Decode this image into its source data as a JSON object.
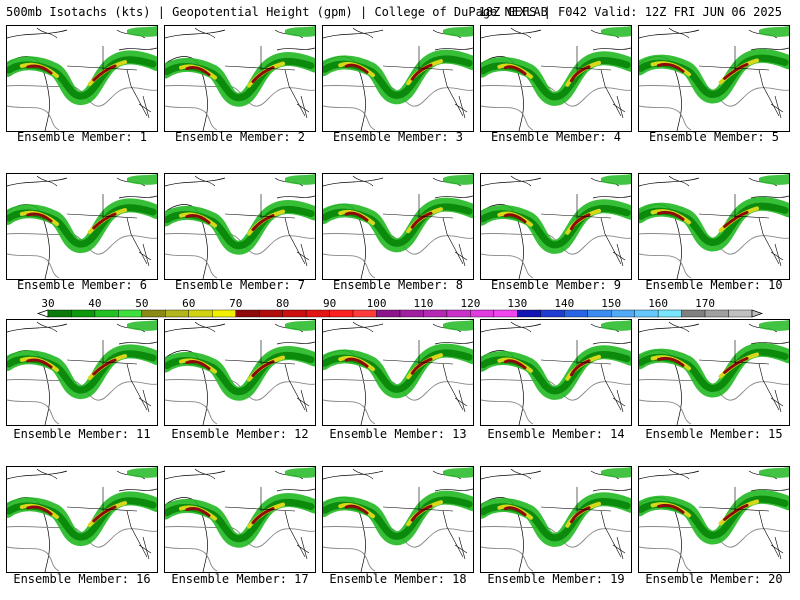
{
  "header": {
    "title_left": "500mb Isotachs (kts) | Geopotential Height (gpm) | College of DuPage NEXLAB",
    "title_right": "18Z GEFS | F042 Valid: 12Z FRI JUN 06 2025"
  },
  "members": [
    {
      "label": "Ensemble Member: 1"
    },
    {
      "label": "Ensemble Member: 2"
    },
    {
      "label": "Ensemble Member: 3"
    },
    {
      "label": "Ensemble Member: 4"
    },
    {
      "label": "Ensemble Member: 5"
    },
    {
      "label": "Ensemble Member: 6"
    },
    {
      "label": "Ensemble Member: 7"
    },
    {
      "label": "Ensemble Member: 8"
    },
    {
      "label": "Ensemble Member: 9"
    },
    {
      "label": "Ensemble Member: 10"
    },
    {
      "label": "Ensemble Member: 11"
    },
    {
      "label": "Ensemble Member: 12"
    },
    {
      "label": "Ensemble Member: 13"
    },
    {
      "label": "Ensemble Member: 14"
    },
    {
      "label": "Ensemble Member: 15"
    },
    {
      "label": "Ensemble Member: 16"
    },
    {
      "label": "Ensemble Member: 17"
    },
    {
      "label": "Ensemble Member: 18"
    },
    {
      "label": "Ensemble Member: 19"
    },
    {
      "label": "Ensemble Member: 20"
    }
  ],
  "colorbar": {
    "unit": "kts",
    "labels": [
      "30",
      "40",
      "50",
      "60",
      "70",
      "80",
      "90",
      "100",
      "110",
      "120",
      "130",
      "140",
      "150",
      "160",
      "170"
    ],
    "colors": [
      "#0a7a0a",
      "#0c9a0c",
      "#22c022",
      "#3ee03e",
      "#8a8a14",
      "#b4b41e",
      "#d2d214",
      "#f0f000",
      "#8c0a0a",
      "#b00c0c",
      "#cc1010",
      "#e41414",
      "#ff2020",
      "#ff3c3c",
      "#8c148c",
      "#a01ea0",
      "#b428b4",
      "#c832c8",
      "#e03ce0",
      "#f046f0",
      "#1414b4",
      "#1e3cd2",
      "#2864e6",
      "#3c8cf0",
      "#50aaf8",
      "#64c8ff",
      "#78e6ff",
      "#808080",
      "#a0a0a0",
      "#c0c0c0"
    ]
  },
  "map_colors": {
    "jet_light": "#22b822",
    "jet_mid": "#0b8a0b",
    "jet_yellow": "#d8d81a",
    "jet_core": "#8c0a0a",
    "height_contour": "#888888",
    "borders": "#000000"
  }
}
